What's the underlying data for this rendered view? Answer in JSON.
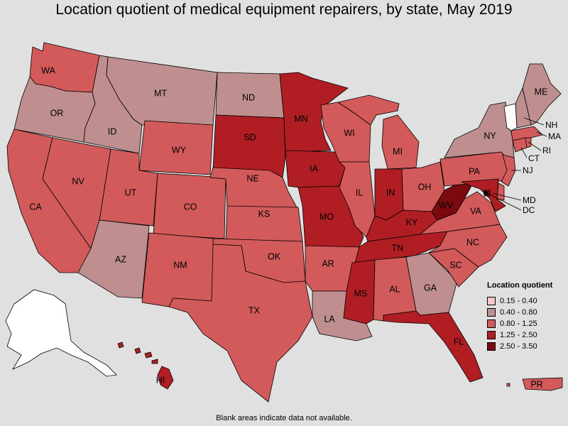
{
  "title": "Location quotient of medical equipment repairers, by state, May 2019",
  "footnote": "Blank areas indicate data not available.",
  "legend": {
    "title": "Location quotient",
    "items": [
      {
        "label": "0.15 - 0.40",
        "color": "#f4c7c7"
      },
      {
        "label": "0.40 - 0.80",
        "color": "#bf8f8f"
      },
      {
        "label": "0.80 - 1.25",
        "color": "#d35a5a"
      },
      {
        "label": "1.25 - 2.50",
        "color": "#b01e23"
      },
      {
        "label": "2.50 - 3.50",
        "color": "#7a0a0e"
      }
    ]
  },
  "colors": {
    "no_data": "#ffffff",
    "class_1": "#f4c7c7",
    "class_2": "#bf8f8f",
    "class_3": "#d35a5a",
    "class_4": "#b01e23",
    "class_5": "#7a0a0e"
  },
  "states": {
    "WA": {
      "label": "WA",
      "class": 3
    },
    "OR": {
      "label": "OR",
      "class": 2
    },
    "CA": {
      "label": "CA",
      "class": 3
    },
    "ID": {
      "label": "ID",
      "class": 2
    },
    "NV": {
      "label": "NV",
      "class": 3
    },
    "MT": {
      "label": "MT",
      "class": 2
    },
    "WY": {
      "label": "WY",
      "class": 3
    },
    "UT": {
      "label": "UT",
      "class": 3
    },
    "AZ": {
      "label": "AZ",
      "class": 2
    },
    "CO": {
      "label": "CO",
      "class": 3
    },
    "NM": {
      "label": "NM",
      "class": 3
    },
    "ND": {
      "label": "ND",
      "class": 2
    },
    "SD": {
      "label": "SD",
      "class": 4
    },
    "NE": {
      "label": "NE",
      "class": 3
    },
    "KS": {
      "label": "KS",
      "class": 3
    },
    "OK": {
      "label": "OK",
      "class": 3
    },
    "TX": {
      "label": "TX",
      "class": 3
    },
    "MN": {
      "label": "MN",
      "class": 4
    },
    "IA": {
      "label": "IA",
      "class": 4
    },
    "MO": {
      "label": "MO",
      "class": 4
    },
    "AR": {
      "label": "AR",
      "class": 3
    },
    "LA": {
      "label": "LA",
      "class": 2
    },
    "WI": {
      "label": "WI",
      "class": 3
    },
    "IL": {
      "label": "IL",
      "class": 3
    },
    "MI": {
      "label": "MI",
      "class": 3
    },
    "IN": {
      "label": "IN",
      "class": 4
    },
    "OH": {
      "label": "OH",
      "class": 3
    },
    "KY": {
      "label": "KY",
      "class": 4
    },
    "TN": {
      "label": "TN",
      "class": 4
    },
    "MS": {
      "label": "MS",
      "class": 4
    },
    "AL": {
      "label": "AL",
      "class": 3
    },
    "GA": {
      "label": "GA",
      "class": 2
    },
    "FL": {
      "label": "FL",
      "class": 4
    },
    "SC": {
      "label": "SC",
      "class": 3
    },
    "NC": {
      "label": "NC",
      "class": 3
    },
    "VA": {
      "label": "VA",
      "class": 3
    },
    "WV": {
      "label": "WV",
      "class": 5
    },
    "PA": {
      "label": "PA",
      "class": 3
    },
    "NY": {
      "label": "NY",
      "class": 2
    },
    "NJ": {
      "label": "NJ",
      "class": 3
    },
    "DE": {
      "label": "",
      "class": 3
    },
    "MD": {
      "label": "MD",
      "class": 4
    },
    "DC": {
      "label": "DC",
      "class": 5
    },
    "CT": {
      "label": "CT",
      "class": 3
    },
    "RI": {
      "label": "RI",
      "class": 3
    },
    "MA": {
      "label": "MA",
      "class": 3
    },
    "VT": {
      "label": "",
      "class": 0
    },
    "NH": {
      "label": "NH",
      "class": 2
    },
    "ME": {
      "label": "ME",
      "class": 2
    },
    "AK": {
      "label": "",
      "class": 0
    },
    "HI": {
      "label": "HI",
      "class": 4
    },
    "PR": {
      "label": "PR",
      "class": 3
    }
  }
}
